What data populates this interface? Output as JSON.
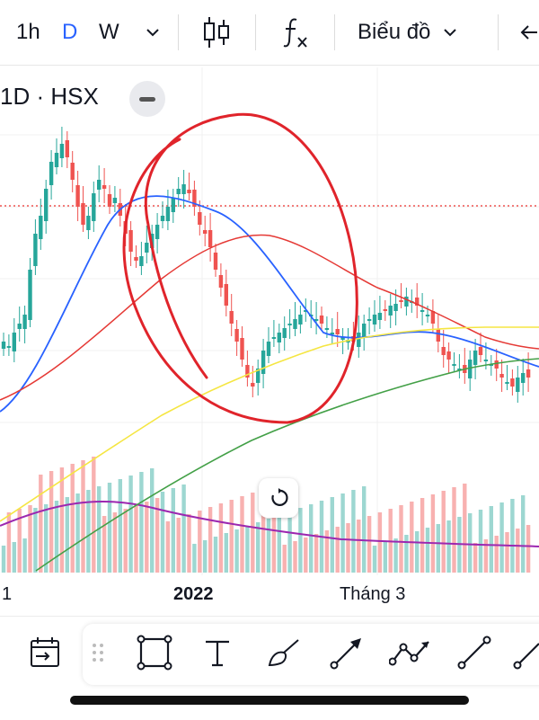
{
  "toolbar": {
    "intervals": [
      "1h",
      "D",
      "W"
    ],
    "active_interval": "D",
    "chart_type_label": "Biểu đồ"
  },
  "chart": {
    "symbol": "1D · HSX",
    "x_labels": [
      "1",
      "2022",
      "Tháng 3"
    ]
  },
  "colors": {
    "up": "#26a69a",
    "down": "#ef5350",
    "ma_blue": "#2962ff",
    "ma_red": "#e53935",
    "ma_yellow": "#f5e642",
    "ma_green": "#43a047",
    "vol_ma": "#9c27b0",
    "annotation": "#e0242b"
  },
  "icons": [
    "chevron-down-icon",
    "candlestick-icon",
    "function-icon",
    "calendar-icon",
    "rectangle-icon",
    "text-icon",
    "brush-icon",
    "arrow-icon",
    "path-icon",
    "trend-line-icon",
    "refresh-icon"
  ]
}
